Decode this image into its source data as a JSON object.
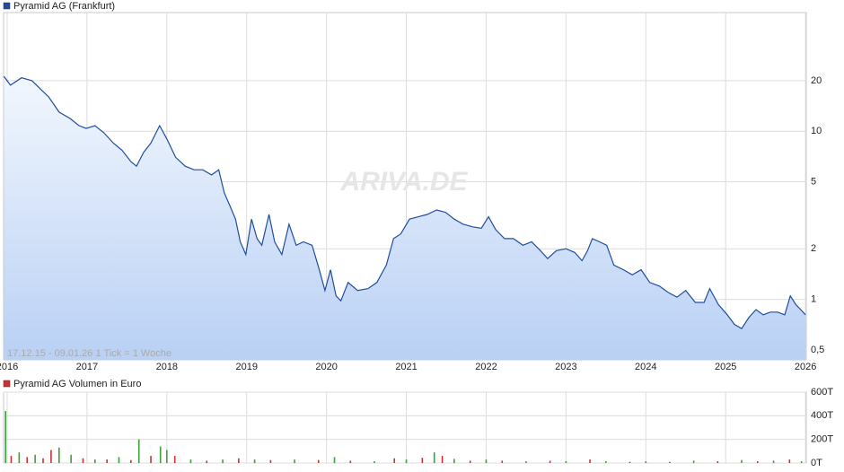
{
  "chart_data": [
    {
      "type": "line",
      "log_y": true,
      "grid": true,
      "annotation": "17.12.15 - 09.01.26   1 Tick = 1 Woche",
      "watermark": "ARIVA.DE",
      "xlim": [
        2015.955,
        2026.01
      ],
      "xticks": [
        2016,
        2017,
        2018,
        2019,
        2020,
        2021,
        2022,
        2023,
        2024,
        2025,
        2026
      ],
      "ylim": [
        0.437,
        50.8
      ],
      "yticks": [
        {
          "value": 0.5,
          "label": "0,5"
        },
        1,
        2,
        5,
        10,
        20
      ],
      "x": [
        2015.96,
        2016.04,
        2016.18,
        2016.31,
        2016.43,
        2016.52,
        2016.65,
        2016.79,
        2016.9,
        2016.99,
        2017.1,
        2017.21,
        2017.33,
        2017.44,
        2017.55,
        2017.62,
        2017.71,
        2017.8,
        2017.91,
        2018.0,
        2018.11,
        2018.23,
        2018.34,
        2018.45,
        2018.56,
        2018.65,
        2018.72,
        2018.79,
        2018.86,
        2018.92,
        2018.99,
        2019.06,
        2019.13,
        2019.19,
        2019.28,
        2019.35,
        2019.44,
        2019.53,
        2019.62,
        2019.71,
        2019.82,
        2019.91,
        2019.98,
        2020.05,
        2020.12,
        2020.18,
        2020.27,
        2020.39,
        2020.52,
        2020.63,
        2020.75,
        2020.84,
        2020.93,
        2021.04,
        2021.15,
        2021.26,
        2021.38,
        2021.49,
        2021.6,
        2021.71,
        2021.83,
        2021.94,
        2022.03,
        2022.12,
        2022.23,
        2022.34,
        2022.46,
        2022.57,
        2022.68,
        2022.77,
        2022.88,
        2023.0,
        2023.11,
        2023.2,
        2023.27,
        2023.33,
        2023.42,
        2023.51,
        2023.6,
        2023.72,
        2023.83,
        2023.94,
        2024.05,
        2024.17,
        2024.28,
        2024.39,
        2024.5,
        2024.62,
        2024.73,
        2024.8,
        2024.91,
        2025.02,
        2025.11,
        2025.2,
        2025.29,
        2025.38,
        2025.47,
        2025.56,
        2025.65,
        2025.74,
        2025.81,
        2025.88,
        2025.94,
        2026.0
      ],
      "series": [
        {
          "name": "Pyramid AG (Frankfurt)",
          "color": "#1f4e9e",
          "values": [
            21.2,
            18.8,
            20.8,
            20,
            17.6,
            16,
            13,
            11.9,
            10.8,
            10.4,
            10.8,
            9.8,
            8.5,
            7.7,
            6.6,
            6.2,
            7.5,
            8.5,
            10.8,
            9,
            7,
            6.2,
            5.9,
            5.9,
            5.5,
            5.9,
            4.3,
            3.6,
            3,
            2.2,
            1.85,
            3,
            2.3,
            2.1,
            3.2,
            2.2,
            1.85,
            2.8,
            2.1,
            2.2,
            2.1,
            1.5,
            1.13,
            1.5,
            1.05,
            0.98,
            1.26,
            1.13,
            1.16,
            1.26,
            1.6,
            2.3,
            2.45,
            3,
            3.1,
            3.2,
            3.4,
            3.3,
            3,
            2.8,
            2.7,
            2.65,
            3.1,
            2.6,
            2.3,
            2.3,
            2.1,
            2.2,
            1.95,
            1.75,
            1.95,
            2,
            1.9,
            1.7,
            1.95,
            2.3,
            2.2,
            2.1,
            1.6,
            1.5,
            1.4,
            1.5,
            1.26,
            1.2,
            1.1,
            1.03,
            1.13,
            0.96,
            0.96,
            1.16,
            0.93,
            0.81,
            0.71,
            0.67,
            0.78,
            0.87,
            0.81,
            0.84,
            0.84,
            0.81,
            1.05,
            0.93,
            0.87,
            0.81
          ]
        }
      ]
    },
    {
      "type": "bar",
      "grid": true,
      "xlim": [
        2015.955,
        2026.01
      ],
      "ylim": [
        0,
        600000
      ],
      "yticks": [
        {
          "value": 0,
          "label": "0T"
        },
        {
          "value": 200000,
          "label": "200T"
        },
        {
          "value": 400000,
          "label": "400T"
        },
        {
          "value": 600000,
          "label": "600T"
        }
      ],
      "x": [
        2015.98,
        2016.05,
        2016.15,
        2016.25,
        2016.35,
        2016.45,
        2016.55,
        2016.65,
        2016.8,
        2016.95,
        2017.1,
        2017.25,
        2017.4,
        2017.55,
        2017.65,
        2017.8,
        2017.92,
        2018.0,
        2018.1,
        2018.3,
        2018.5,
        2018.7,
        2018.9,
        2019.1,
        2019.3,
        2019.6,
        2019.9,
        2020.1,
        2020.3,
        2020.6,
        2020.85,
        2021.0,
        2021.2,
        2021.35,
        2021.45,
        2021.6,
        2021.8,
        2022.0,
        2022.2,
        2022.5,
        2022.8,
        2023.0,
        2023.3,
        2023.5,
        2023.8,
        2024.0,
        2024.3,
        2024.6,
        2024.9,
        2025.2,
        2025.4,
        2025.6,
        2025.8,
        2025.95
      ],
      "series": [
        {
          "name": "Pyramid AG Volumen in Euro",
          "color": "#d03030",
          "values": [
            440000,
            60000,
            90000,
            50000,
            70000,
            40000,
            110000,
            130000,
            70000,
            40000,
            30000,
            30000,
            50000,
            25000,
            200000,
            60000,
            140000,
            110000,
            60000,
            30000,
            20000,
            30000,
            40000,
            30000,
            25000,
            30000,
            25000,
            50000,
            20000,
            15000,
            40000,
            30000,
            45000,
            90000,
            60000,
            35000,
            20000,
            30000,
            20000,
            15000,
            20000,
            15000,
            30000,
            15000,
            10000,
            15000,
            10000,
            20000,
            15000,
            25000,
            15000,
            20000,
            30000,
            15000
          ],
          "colors": [
            "#3aa03a",
            "#d03030",
            "#3aa03a",
            "#d03030",
            "#3aa03a",
            "#d03030",
            "#d03030",
            "#3aa03a",
            "#3aa03a",
            "#d03030",
            "#3aa03a",
            "#d03030",
            "#3aa03a",
            "#d03030",
            "#3aa03a",
            "#d03030",
            "#3aa03a",
            "#3aa03a",
            "#d03030",
            "#3aa03a",
            "#d03030",
            "#3aa03a",
            "#d03030",
            "#3aa03a",
            "#d03030",
            "#3aa03a",
            "#d03030",
            "#3aa03a",
            "#d03030",
            "#3aa03a",
            "#d03030",
            "#3aa03a",
            "#d03030",
            "#3aa03a",
            "#d03030",
            "#3aa03a",
            "#d03030",
            "#3aa03a",
            "#d03030",
            "#3aa03a",
            "#d03030",
            "#3aa03a",
            "#d03030",
            "#3aa03a",
            "#d03030",
            "#3aa03a",
            "#d03030",
            "#3aa03a",
            "#d03030",
            "#3aa03a",
            "#d03030",
            "#3aa03a",
            "#d03030",
            "#3aa03a"
          ]
        }
      ]
    }
  ]
}
